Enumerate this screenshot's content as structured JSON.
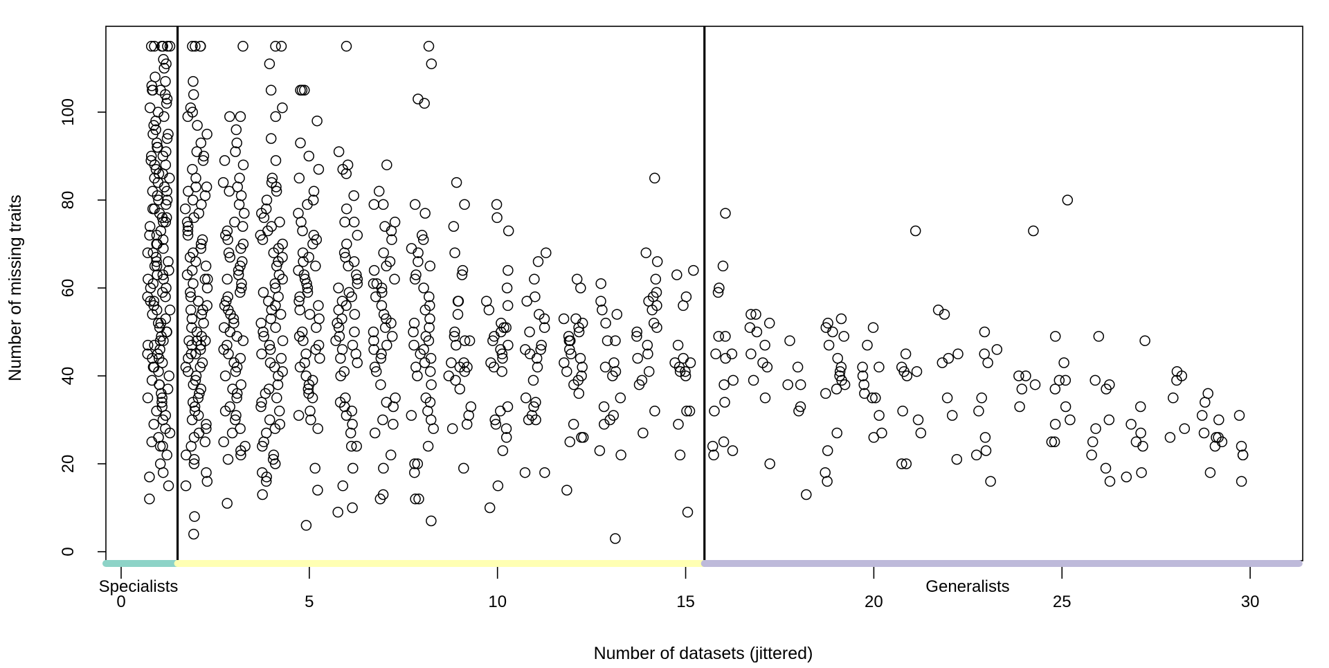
{
  "chart_data": {
    "type": "scatter",
    "title": "",
    "xlabel": "Number of datasets (jittered)",
    "ylabel": "Number of missing traits",
    "xlim": [
      -0.5,
      31.3
    ],
    "ylim": [
      0,
      115
    ],
    "x_ticks": [
      "0",
      "5",
      "10",
      "15",
      "20",
      "25",
      "30"
    ],
    "y_ticks": [
      "0",
      "20",
      "40",
      "60",
      "80",
      "100"
    ],
    "grid": false,
    "point_style": "open circle",
    "jittered_x": true,
    "group_boundaries": [
      1.5,
      15.5
    ],
    "groups": [
      {
        "label": "Specialists",
        "range": [
          -0.5,
          1.5
        ],
        "color": "#8DD3C7"
      },
      {
        "label": "",
        "range": [
          1.5,
          15.5
        ],
        "color": "#FFFFB3"
      },
      {
        "label": "Generalists",
        "range": [
          15.5,
          31.3
        ],
        "color": "#BEBADA"
      }
    ],
    "columns": [
      {
        "datasets": 1,
        "missing": [
          115,
          115,
          115,
          115,
          115,
          115,
          115,
          115,
          112,
          111,
          110,
          108,
          107,
          106,
          105,
          105,
          105,
          104,
          103,
          102,
          101,
          100,
          99,
          98,
          97,
          96,
          95,
          94,
          93,
          92,
          91,
          90,
          89,
          88,
          87,
          86,
          85,
          84,
          83,
          82,
          81,
          80,
          79,
          78,
          77,
          76,
          75,
          74,
          73,
          72,
          71,
          70,
          69,
          68,
          67,
          66,
          65,
          64,
          63,
          62,
          61,
          60,
          59,
          58,
          57,
          56,
          55,
          54,
          53,
          52,
          51,
          50,
          49,
          48,
          47,
          46,
          45,
          44,
          43,
          42,
          41,
          40,
          39,
          38,
          37,
          36,
          35,
          34,
          33,
          32,
          31,
          30,
          29,
          28,
          27,
          26,
          25,
          24,
          24,
          22,
          20,
          18,
          17,
          15,
          12,
          95,
          92,
          88,
          85,
          82,
          78,
          75,
          72,
          70,
          68,
          65,
          62,
          60,
          58,
          55,
          52,
          50,
          47,
          45,
          42,
          38,
          35,
          90,
          86,
          80,
          76,
          66,
          63,
          57,
          48,
          44
        ]
      },
      {
        "datasets": 2,
        "missing": [
          115,
          115,
          115,
          115,
          107,
          104,
          101,
          100,
          99,
          97,
          95,
          93,
          91,
          90,
          89,
          87,
          85,
          83,
          82,
          81,
          80,
          78,
          77,
          76,
          75,
          74,
          73,
          72,
          71,
          70,
          69,
          68,
          67,
          66,
          65,
          64,
          63,
          62,
          61,
          60,
          59,
          58,
          57,
          56,
          55,
          54,
          53,
          52,
          51,
          50,
          49,
          48,
          47,
          46,
          45,
          44,
          43,
          42,
          41,
          40,
          39,
          38,
          37,
          36,
          35,
          34,
          33,
          32,
          31,
          30,
          29,
          28,
          27,
          26,
          25,
          24,
          22,
          21,
          20,
          18,
          16,
          15,
          8,
          4,
          48,
          48,
          47,
          83,
          79,
          62,
          55,
          45,
          42
        ]
      },
      {
        "datasets": 3,
        "missing": [
          115,
          99,
          99,
          96,
          93,
          91,
          89,
          88,
          85,
          84,
          83,
          82,
          81,
          79,
          77,
          75,
          74,
          73,
          72,
          71,
          70,
          69,
          68,
          67,
          66,
          65,
          64,
          63,
          62,
          61,
          60,
          59,
          58,
          57,
          56,
          55,
          54,
          53,
          52,
          51,
          50,
          49,
          48,
          47,
          46,
          45,
          44,
          43,
          42,
          41,
          40,
          38,
          37,
          36,
          35,
          33,
          32,
          31,
          30,
          28,
          27,
          25,
          24,
          23,
          22,
          21,
          11
        ]
      },
      {
        "datasets": 4,
        "missing": [
          115,
          115,
          111,
          105,
          101,
          99,
          94,
          89,
          85,
          84,
          83,
          82,
          80,
          78,
          77,
          76,
          75,
          74,
          73,
          72,
          71,
          70,
          69,
          68,
          67,
          66,
          65,
          63,
          62,
          61,
          60,
          59,
          58,
          57,
          56,
          55,
          54,
          53,
          52,
          51,
          50,
          49,
          48,
          47,
          46,
          45,
          44,
          43,
          42,
          41,
          40,
          38,
          37,
          36,
          35,
          34,
          33,
          32,
          30,
          29,
          28,
          27,
          25,
          24,
          22,
          21,
          20,
          18,
          17,
          16,
          13
        ]
      },
      {
        "datasets": 5,
        "missing": [
          105,
          105,
          105,
          98,
          93,
          90,
          87,
          85,
          82,
          80,
          79,
          77,
          75,
          73,
          72,
          71,
          70,
          68,
          67,
          66,
          65,
          64,
          63,
          62,
          61,
          60,
          59,
          58,
          57,
          56,
          55,
          54,
          53,
          51,
          50,
          49,
          48,
          47,
          46,
          45,
          44,
          43,
          42,
          40,
          39,
          38,
          37,
          36,
          35,
          32,
          31,
          30,
          28,
          19,
          14,
          6
        ]
      },
      {
        "datasets": 6,
        "missing": [
          115,
          91,
          88,
          87,
          86,
          81,
          78,
          75,
          75,
          72,
          70,
          68,
          67,
          66,
          65,
          63,
          62,
          61,
          60,
          59,
          58,
          57,
          56,
          55,
          54,
          53,
          52,
          51,
          50,
          49,
          48,
          47,
          46,
          45,
          44,
          43,
          41,
          40,
          35,
          34,
          33,
          32,
          31,
          29,
          27,
          24,
          24,
          19,
          15,
          10,
          9
        ]
      },
      {
        "datasets": 7,
        "missing": [
          88,
          82,
          79,
          79,
          75,
          74,
          73,
          71,
          68,
          66,
          65,
          64,
          62,
          61,
          61,
          60,
          59,
          58,
          56,
          54,
          53,
          52,
          51,
          50,
          49,
          48,
          47,
          46,
          45,
          44,
          42,
          41,
          38,
          35,
          34,
          33,
          30,
          29,
          27,
          22,
          19,
          13,
          12
        ]
      },
      {
        "datasets": 8,
        "missing": [
          115,
          111,
          103,
          102,
          79,
          77,
          72,
          71,
          69,
          68,
          66,
          65,
          63,
          62,
          60,
          58,
          56,
          55,
          53,
          52,
          51,
          50,
          49,
          48,
          47,
          46,
          45,
          44,
          43,
          42,
          41,
          40,
          38,
          35,
          34,
          32,
          31,
          30,
          28,
          24,
          20,
          20,
          18,
          12,
          12,
          7
        ]
      },
      {
        "datasets": 9,
        "missing": [
          84,
          79,
          74,
          68,
          64,
          63,
          57,
          57,
          54,
          50,
          49,
          48,
          48,
          47,
          43,
          43,
          42,
          42,
          41,
          40,
          39,
          37,
          33,
          31,
          29,
          28,
          19
        ]
      },
      {
        "datasets": 10,
        "missing": [
          79,
          76,
          73,
          64,
          60,
          57,
          56,
          55,
          52,
          51,
          51,
          50,
          49,
          48,
          47,
          46,
          45,
          44,
          43,
          42,
          41,
          33,
          32,
          30,
          29,
          28,
          26,
          23,
          15,
          10
        ]
      },
      {
        "datasets": 11,
        "missing": [
          68,
          66,
          62,
          58,
          57,
          54,
          53,
          51,
          50,
          47,
          46,
          46,
          45,
          44,
          42,
          39,
          35,
          34,
          33,
          31,
          30,
          30,
          18,
          18
        ]
      },
      {
        "datasets": 12,
        "missing": [
          62,
          60,
          53,
          53,
          52,
          51,
          50,
          49,
          48,
          48,
          46,
          45,
          44,
          43,
          42,
          41,
          40,
          39,
          38,
          36,
          29,
          26,
          26,
          25,
          14
        ]
      },
      {
        "datasets": 13,
        "missing": [
          61,
          57,
          55,
          54,
          52,
          48,
          48,
          43,
          42,
          41,
          40,
          35,
          33,
          31,
          30,
          29,
          23,
          22,
          3
        ]
      },
      {
        "datasets": 14,
        "missing": [
          85,
          68,
          66,
          62,
          59,
          58,
          57,
          56,
          55,
          52,
          51,
          50,
          49,
          47,
          45,
          44,
          41,
          39,
          38,
          32,
          27
        ]
      },
      {
        "datasets": 15,
        "missing": [
          64,
          63,
          58,
          56,
          47,
          44,
          43,
          43,
          42,
          41,
          41,
          40,
          32,
          32,
          29,
          22,
          9
        ]
      },
      {
        "datasets": 16,
        "missing": [
          77,
          65,
          60,
          59,
          49,
          49,
          45,
          45,
          44,
          39,
          38,
          34,
          32,
          25,
          24,
          23,
          22
        ]
      },
      {
        "datasets": 17,
        "missing": [
          54,
          54,
          52,
          51,
          50,
          47,
          45,
          43,
          42,
          39,
          35,
          20
        ]
      },
      {
        "datasets": 18,
        "missing": [
          48,
          42,
          38,
          38,
          33,
          32,
          13
        ]
      },
      {
        "datasets": 19,
        "missing": [
          53,
          52,
          51,
          50,
          49,
          47,
          44,
          42,
          41,
          40,
          39,
          38,
          37,
          36,
          27,
          23,
          18,
          16
        ]
      },
      {
        "datasets": 20,
        "missing": [
          51,
          47,
          42,
          42,
          40,
          38,
          36,
          35,
          35,
          31,
          27,
          26
        ]
      },
      {
        "datasets": 21,
        "missing": [
          73,
          45,
          42,
          41,
          41,
          40,
          32,
          30,
          27,
          20,
          20
        ]
      },
      {
        "datasets": 22,
        "missing": [
          55,
          54,
          45,
          44,
          43,
          35,
          31,
          21
        ]
      },
      {
        "datasets": 23,
        "missing": [
          50,
          46,
          45,
          43,
          35,
          32,
          26,
          23,
          22,
          16
        ]
      },
      {
        "datasets": 24,
        "missing": [
          73,
          40,
          40,
          38,
          37,
          33
        ]
      },
      {
        "datasets": 25,
        "missing": [
          80,
          49,
          43,
          39,
          39,
          37,
          33,
          30,
          29,
          25,
          25
        ]
      },
      {
        "datasets": 26,
        "missing": [
          49,
          39,
          38,
          37,
          30,
          28,
          25,
          22,
          19,
          16
        ]
      },
      {
        "datasets": 27,
        "missing": [
          48,
          33,
          29,
          27,
          25,
          24,
          18,
          17
        ]
      },
      {
        "datasets": 28,
        "missing": [
          41,
          40,
          39,
          35,
          28,
          26
        ]
      },
      {
        "datasets": 29,
        "missing": [
          36,
          34,
          31,
          30,
          27,
          26,
          26,
          25,
          24,
          18
        ]
      },
      {
        "datasets": 30,
        "missing": [
          31,
          24,
          22,
          22,
          16
        ]
      }
    ]
  }
}
